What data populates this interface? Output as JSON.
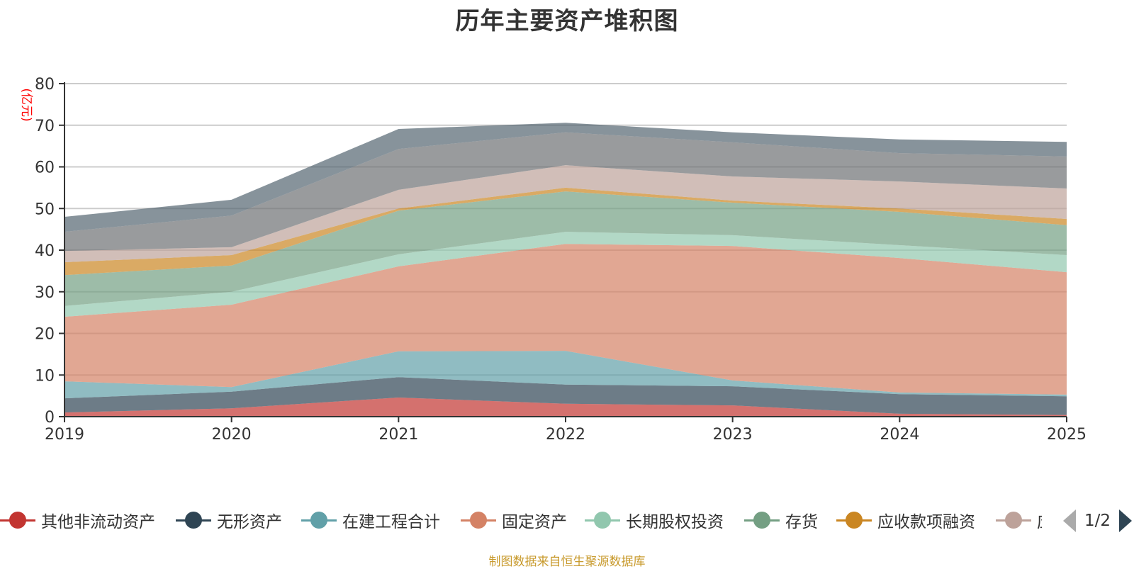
{
  "chart_data": {
    "type": "area",
    "stacked": true,
    "title": "历年主要资产堆积图",
    "xlabel": "",
    "ylabel": "(亿元)",
    "x": [
      "2019",
      "2020",
      "2021",
      "2022",
      "2023",
      "2024",
      "2025"
    ],
    "ylim": [
      0,
      80
    ],
    "yticks": [
      0,
      10,
      20,
      30,
      40,
      50,
      60,
      70,
      80
    ],
    "grid": true,
    "legend_position": "bottom",
    "series": [
      {
        "name": "其他非流动资产",
        "color": "#c23531",
        "values": [
          1.0,
          2.0,
          4.6,
          3.1,
          2.7,
          0.7,
          0.4
        ]
      },
      {
        "name": "无形资产",
        "color": "#2f4554",
        "values": [
          3.4,
          4.0,
          4.9,
          4.6,
          4.6,
          4.7,
          4.5
        ]
      },
      {
        "name": "在建工程合计",
        "color": "#61a0a8",
        "values": [
          4.1,
          1.1,
          6.2,
          8.1,
          1.4,
          0.4,
          0.4
        ]
      },
      {
        "name": "固定资产",
        "color": "#d48265",
        "values": [
          15.5,
          19.8,
          20.4,
          25.7,
          32.3,
          32.3,
          29.4
        ]
      },
      {
        "name": "长期股权投资",
        "color": "#91c7ae",
        "values": [
          2.6,
          3.1,
          2.9,
          2.9,
          2.6,
          3.1,
          4.1
        ]
      },
      {
        "name": "存货",
        "color": "#749f83",
        "values": [
          7.4,
          6.3,
          10.5,
          9.7,
          7.8,
          8.0,
          7.2
        ]
      },
      {
        "name": "应收款项融资",
        "color": "#ca8622",
        "values": [
          3.1,
          2.5,
          0.5,
          0.9,
          0.5,
          0.8,
          1.5
        ]
      },
      {
        "name": "应",
        "color": "#bda29a",
        "values": [
          2.7,
          1.9,
          4.5,
          5.4,
          5.8,
          6.5,
          7.3
        ]
      },
      {
        "name": "",
        "color": "#6e7074",
        "values": [
          4.6,
          7.6,
          9.8,
          7.9,
          8.2,
          6.8,
          7.7
        ]
      },
      {
        "name": "",
        "color": "#546570",
        "values": [
          3.6,
          3.8,
          4.8,
          2.3,
          2.4,
          3.3,
          3.5
        ]
      }
    ]
  },
  "legend": {
    "visible_count": 8,
    "page_indicator": "1/2"
  },
  "source_text": "制图数据来自恒生聚源数据库"
}
